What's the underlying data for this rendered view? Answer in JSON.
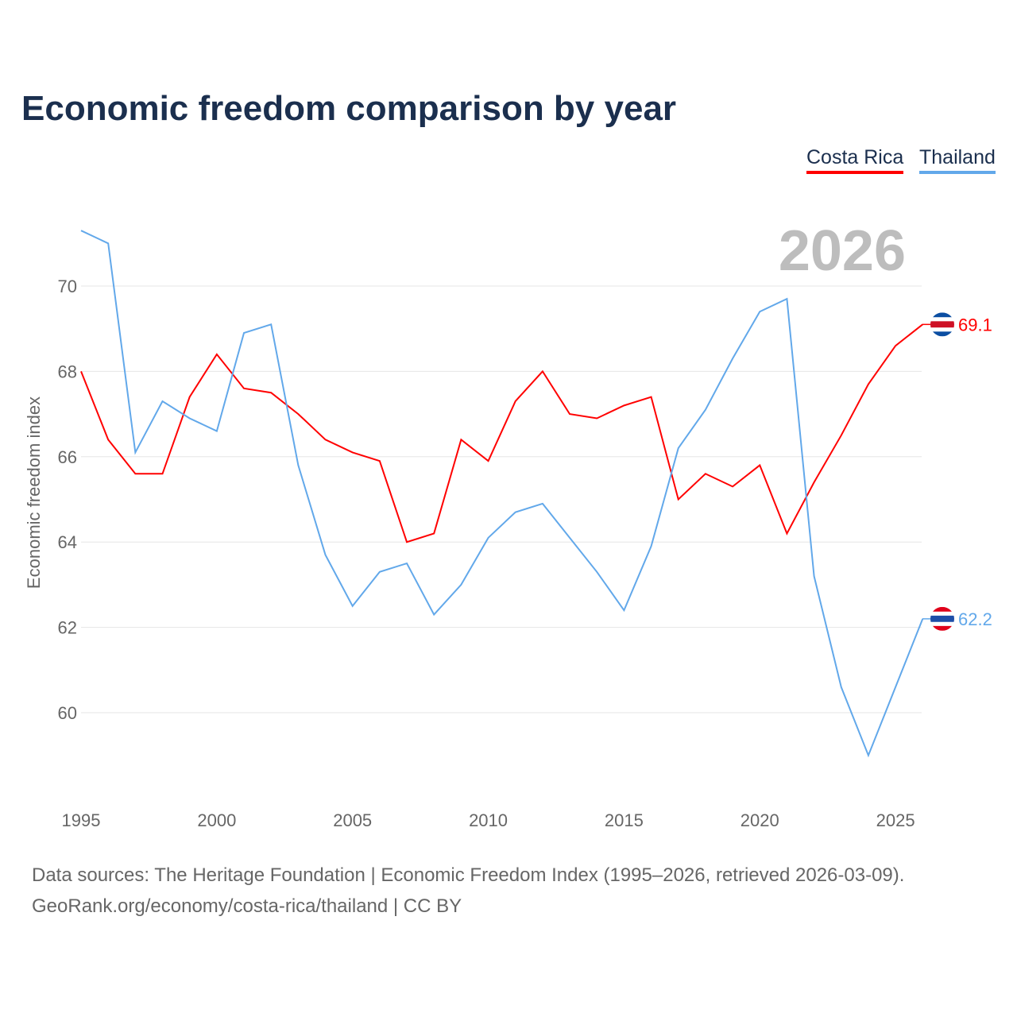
{
  "chart_data": {
    "type": "line",
    "title": "Economic freedom comparison by year",
    "ylabel": "Economic freedom index",
    "xlabel": "",
    "year_label": "2026",
    "x": [
      1995,
      1996,
      1997,
      1998,
      1999,
      2000,
      2001,
      2002,
      2003,
      2004,
      2005,
      2006,
      2007,
      2008,
      2009,
      2010,
      2011,
      2012,
      2013,
      2014,
      2015,
      2016,
      2017,
      2018,
      2019,
      2020,
      2021,
      2022,
      2023,
      2024,
      2025,
      2026
    ],
    "xticks": [
      "1995",
      "2000",
      "2005",
      "2010",
      "2015",
      "2020",
      "2025"
    ],
    "yticks": [
      "60",
      "62",
      "64",
      "66",
      "68",
      "70"
    ],
    "ylim": [
      58,
      72
    ],
    "grid": true,
    "legend_position": "top-right",
    "series": [
      {
        "name": "Costa Rica",
        "color": "#ff0000",
        "end_label": "69.1",
        "values": [
          68.0,
          66.4,
          65.6,
          65.6,
          67.4,
          68.4,
          67.6,
          67.5,
          67.0,
          66.4,
          66.1,
          65.9,
          64.0,
          64.2,
          66.4,
          65.9,
          67.3,
          68.0,
          67.0,
          66.9,
          67.2,
          67.4,
          65.0,
          65.6,
          65.3,
          65.8,
          64.2,
          65.4,
          66.5,
          67.7,
          68.6,
          69.1
        ]
      },
      {
        "name": "Thailand",
        "color": "#62a8ea",
        "end_label": "62.2",
        "values": [
          71.3,
          71.0,
          66.1,
          67.3,
          66.9,
          66.6,
          68.9,
          69.1,
          65.8,
          63.7,
          62.5,
          63.3,
          63.5,
          62.3,
          63.0,
          64.1,
          64.7,
          64.9,
          64.1,
          63.3,
          62.4,
          63.9,
          66.2,
          67.1,
          68.3,
          69.4,
          69.7,
          63.2,
          60.6,
          59.0,
          60.6,
          62.2
        ]
      }
    ]
  },
  "footer": {
    "line1": "Data sources: The Heritage Foundation | Economic Freedom Index (1995–2026, retrieved 2026-03-09).",
    "line2": "GeoRank.org/economy/costa-rica/thailand | CC BY"
  }
}
